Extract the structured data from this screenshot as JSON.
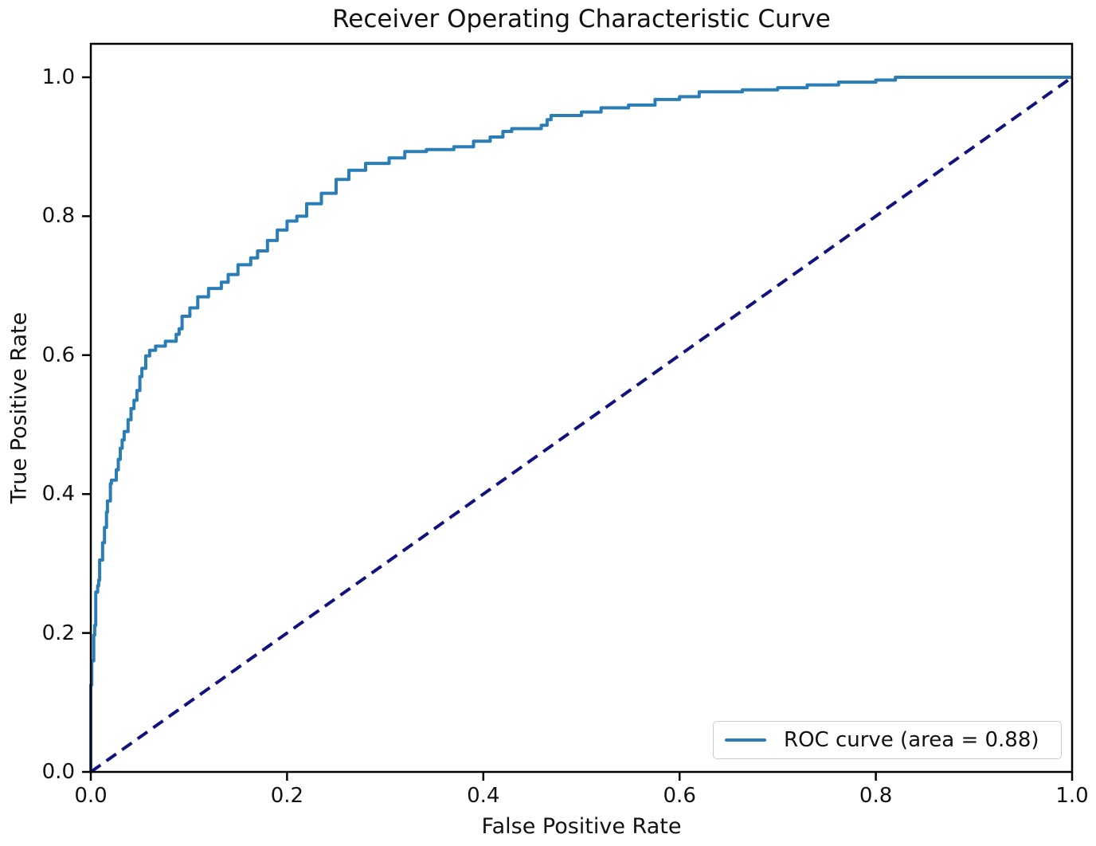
{
  "figure": {
    "title": "Receiver Operating Characteristic Curve",
    "x_axis": {
      "label": "False Positive Rate",
      "ticks": [
        "0.0",
        "0.2",
        "0.4",
        "0.6",
        "0.8",
        "1.0"
      ]
    },
    "y_axis": {
      "label": "True Positive Rate",
      "ticks": [
        "0.0",
        "0.2",
        "0.4",
        "0.6",
        "0.8",
        "1.0"
      ]
    },
    "legend": {
      "label": "ROC curve (area = 0.88)"
    }
  },
  "colors": {
    "roc_curve": "#2b7db5",
    "chance_line": "#12127f",
    "spine": "#000000",
    "text": "#111111",
    "legend_border": "#cccccc"
  },
  "chart_data": {
    "type": "line",
    "title": "Receiver Operating Characteristic Curve",
    "xlabel": "False Positive Rate",
    "ylabel": "True Positive Rate",
    "xlim": [
      0.0,
      1.0
    ],
    "ylim": [
      0.0,
      1.05
    ],
    "x_ticks": [
      0.0,
      0.2,
      0.4,
      0.6,
      0.8,
      1.0
    ],
    "y_ticks": [
      0.0,
      0.2,
      0.4,
      0.6,
      0.8,
      1.0
    ],
    "grid": false,
    "legend_position": "lower right",
    "auc": 0.88,
    "series": [
      {
        "name": "ROC curve (area = 0.88)",
        "style": "solid",
        "draw": "steps",
        "color_key": "roc_curve",
        "points": [
          [
            0.0,
            0.0
          ],
          [
            0.0,
            0.113
          ],
          [
            0.001,
            0.125
          ],
          [
            0.001,
            0.155
          ],
          [
            0.003,
            0.16
          ],
          [
            0.003,
            0.183
          ],
          [
            0.004,
            0.197
          ],
          [
            0.005,
            0.211
          ],
          [
            0.005,
            0.24
          ],
          [
            0.007,
            0.259
          ],
          [
            0.008,
            0.268
          ],
          [
            0.009,
            0.276
          ],
          [
            0.009,
            0.3
          ],
          [
            0.012,
            0.305
          ],
          [
            0.012,
            0.322
          ],
          [
            0.014,
            0.33
          ],
          [
            0.014,
            0.345
          ],
          [
            0.016,
            0.352
          ],
          [
            0.017,
            0.374
          ],
          [
            0.02,
            0.39
          ],
          [
            0.021,
            0.415
          ],
          [
            0.026,
            0.42
          ],
          [
            0.028,
            0.435
          ],
          [
            0.03,
            0.45
          ],
          [
            0.032,
            0.466
          ],
          [
            0.034,
            0.478
          ],
          [
            0.038,
            0.49
          ],
          [
            0.041,
            0.507
          ],
          [
            0.044,
            0.523
          ],
          [
            0.047,
            0.535
          ],
          [
            0.05,
            0.549
          ],
          [
            0.052,
            0.569
          ],
          [
            0.056,
            0.581
          ],
          [
            0.06,
            0.599
          ],
          [
            0.066,
            0.607
          ],
          [
            0.076,
            0.613
          ],
          [
            0.087,
            0.62
          ],
          [
            0.09,
            0.63
          ],
          [
            0.093,
            0.638
          ],
          [
            0.101,
            0.656
          ],
          [
            0.109,
            0.668
          ],
          [
            0.12,
            0.684
          ],
          [
            0.133,
            0.696
          ],
          [
            0.14,
            0.705
          ],
          [
            0.15,
            0.716
          ],
          [
            0.163,
            0.73
          ],
          [
            0.17,
            0.74
          ],
          [
            0.18,
            0.75
          ],
          [
            0.19,
            0.765
          ],
          [
            0.2,
            0.78
          ],
          [
            0.21,
            0.793
          ],
          [
            0.22,
            0.8
          ],
          [
            0.235,
            0.818
          ],
          [
            0.25,
            0.833
          ],
          [
            0.263,
            0.853
          ],
          [
            0.28,
            0.866
          ],
          [
            0.304,
            0.876
          ],
          [
            0.32,
            0.884
          ],
          [
            0.342,
            0.893
          ],
          [
            0.37,
            0.896
          ],
          [
            0.39,
            0.9
          ],
          [
            0.407,
            0.908
          ],
          [
            0.42,
            0.914
          ],
          [
            0.429,
            0.922
          ],
          [
            0.459,
            0.926
          ],
          [
            0.465,
            0.931
          ],
          [
            0.469,
            0.939
          ],
          [
            0.5,
            0.945
          ],
          [
            0.52,
            0.95
          ],
          [
            0.548,
            0.956
          ],
          [
            0.575,
            0.96
          ],
          [
            0.6,
            0.968
          ],
          [
            0.62,
            0.972
          ],
          [
            0.664,
            0.979
          ],
          [
            0.7,
            0.982
          ],
          [
            0.73,
            0.985
          ],
          [
            0.762,
            0.989
          ],
          [
            0.8,
            0.993
          ],
          [
            0.82,
            0.996
          ],
          [
            0.84,
            1.0
          ],
          [
            1.0,
            1.0
          ]
        ]
      },
      {
        "name": "chance diagonal",
        "style": "dashed",
        "draw": "line",
        "color_key": "chance_line",
        "points": [
          [
            0.0,
            0.0
          ],
          [
            1.0,
            1.0
          ]
        ]
      }
    ]
  }
}
